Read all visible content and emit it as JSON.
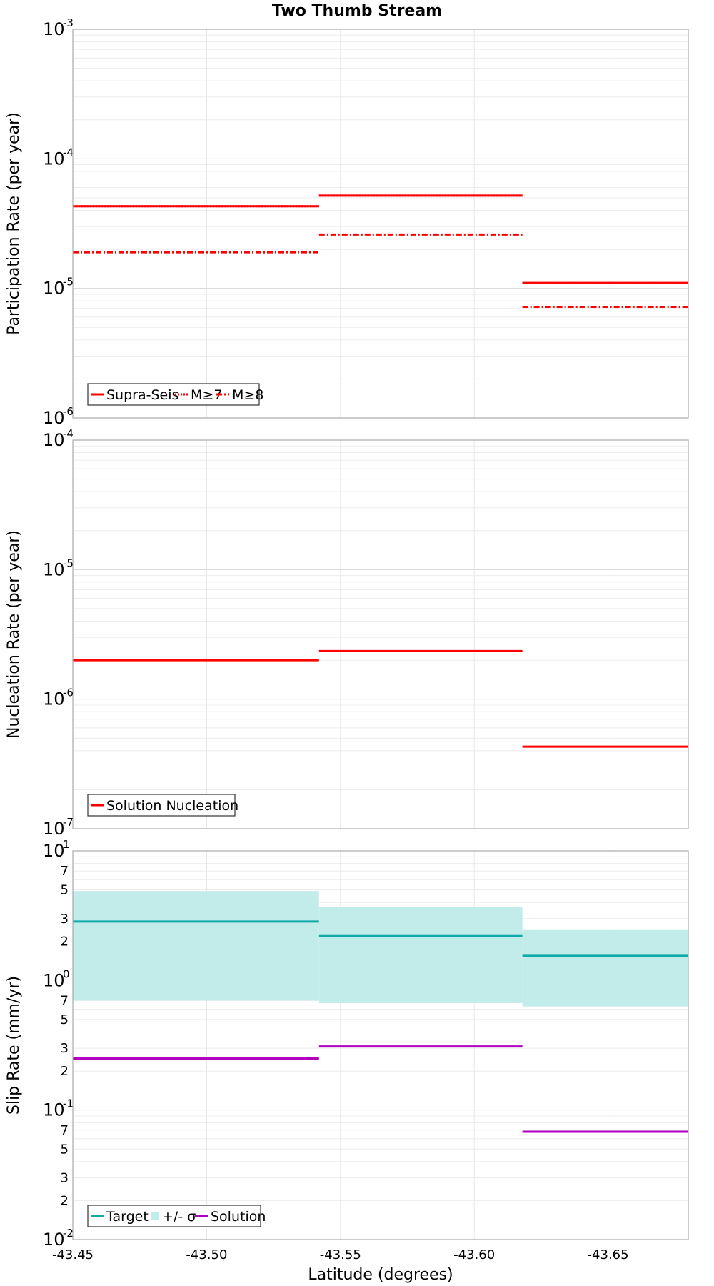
{
  "title": "Two Thumb Stream",
  "xlabel": "Latitude (degrees)",
  "x_ticks": [
    "-43.45",
    "-43.50",
    "-43.55",
    "-43.60",
    "-43.65"
  ],
  "colors": {
    "red": "#ff0000",
    "teal": "#11aaaa",
    "band": "#c2ecea",
    "magenta": "#b000c0"
  },
  "chart_data": [
    {
      "type": "line",
      "title": "Two Thumb Stream",
      "xlabel": "Latitude (degrees)",
      "ylabel": "Participation Rate (per year)",
      "yscale": "log",
      "ylim": [
        1e-06,
        0.001
      ],
      "xlim": [
        -43.45,
        -43.68
      ],
      "y_decade_labels": [
        {
          "base": "10",
          "exp": "-3"
        },
        {
          "base": "10",
          "exp": "-4"
        },
        {
          "base": "10",
          "exp": "-5"
        },
        {
          "base": "10",
          "exp": "-6"
        }
      ],
      "x_segments": [
        [
          -43.45,
          -43.542
        ],
        [
          -43.542,
          -43.618
        ],
        [
          -43.618,
          -43.68
        ]
      ],
      "series": [
        {
          "name": "Supra-Seis",
          "style": "solid",
          "color": "#ff0000",
          "values": [
            4.3e-05,
            5.2e-05,
            1.1e-05
          ]
        },
        {
          "name": "M≥7",
          "style": "dotted",
          "color": "#ff0000",
          "values": [
            4.3e-05,
            5.2e-05,
            1.1e-05
          ]
        },
        {
          "name": "M≥8",
          "style": "dashdot",
          "color": "#ff0000",
          "values": [
            1.9e-05,
            2.6e-05,
            7.2e-06
          ]
        }
      ]
    },
    {
      "type": "line",
      "xlabel": "Latitude (degrees)",
      "ylabel": "Nucleation Rate (per year)",
      "yscale": "log",
      "ylim": [
        1e-07,
        0.0001
      ],
      "xlim": [
        -43.45,
        -43.68
      ],
      "y_decade_labels": [
        {
          "base": "10",
          "exp": "-4"
        },
        {
          "base": "10",
          "exp": "-5"
        },
        {
          "base": "10",
          "exp": "-6"
        },
        {
          "base": "10",
          "exp": "-7"
        }
      ],
      "x_segments": [
        [
          -43.45,
          -43.542
        ],
        [
          -43.542,
          -43.618
        ],
        [
          -43.618,
          -43.68
        ]
      ],
      "series": [
        {
          "name": "Solution Nucleation",
          "style": "solid",
          "color": "#ff0000",
          "values": [
            2e-06,
            2.35e-06,
            4.3e-07
          ]
        }
      ]
    },
    {
      "type": "line",
      "xlabel": "Latitude (degrees)",
      "ylabel": "Slip Rate (mm/yr)",
      "yscale": "log",
      "ylim": [
        0.01,
        10
      ],
      "xlim": [
        -43.45,
        -43.68
      ],
      "y_decade_labels": [
        {
          "base": "10",
          "exp": "1"
        },
        {
          "base": "10",
          "exp": "0"
        },
        {
          "base": "10",
          "exp": "-1"
        },
        {
          "base": "10",
          "exp": "-2"
        }
      ],
      "y_minor_labels": [
        {
          "value": 7,
          "label": "7"
        },
        {
          "value": 5,
          "label": "5"
        },
        {
          "value": 3,
          "label": "3"
        },
        {
          "value": 2,
          "label": "2"
        },
        {
          "value": 0.7,
          "label": "7"
        },
        {
          "value": 0.5,
          "label": "5"
        },
        {
          "value": 0.3,
          "label": "3"
        },
        {
          "value": 0.2,
          "label": "2"
        },
        {
          "value": 0.07,
          "label": "7"
        },
        {
          "value": 0.05,
          "label": "5"
        },
        {
          "value": 0.03,
          "label": "3"
        },
        {
          "value": 0.02,
          "label": "2"
        }
      ],
      "x_segments": [
        [
          -43.45,
          -43.542
        ],
        [
          -43.542,
          -43.618
        ],
        [
          -43.618,
          -43.68
        ]
      ],
      "series": [
        {
          "name": "Target",
          "style": "solid",
          "color": "#11aaaa",
          "values": [
            2.85,
            2.2,
            1.55
          ]
        },
        {
          "name": "+/- σ",
          "style": "band",
          "color": "#c2ecea",
          "lower": [
            0.7,
            0.67,
            0.63
          ],
          "upper": [
            4.9,
            3.7,
            2.45
          ]
        },
        {
          "name": "Solution",
          "style": "solid",
          "color": "#b000c0",
          "values": [
            0.25,
            0.31,
            0.068
          ]
        }
      ]
    }
  ]
}
